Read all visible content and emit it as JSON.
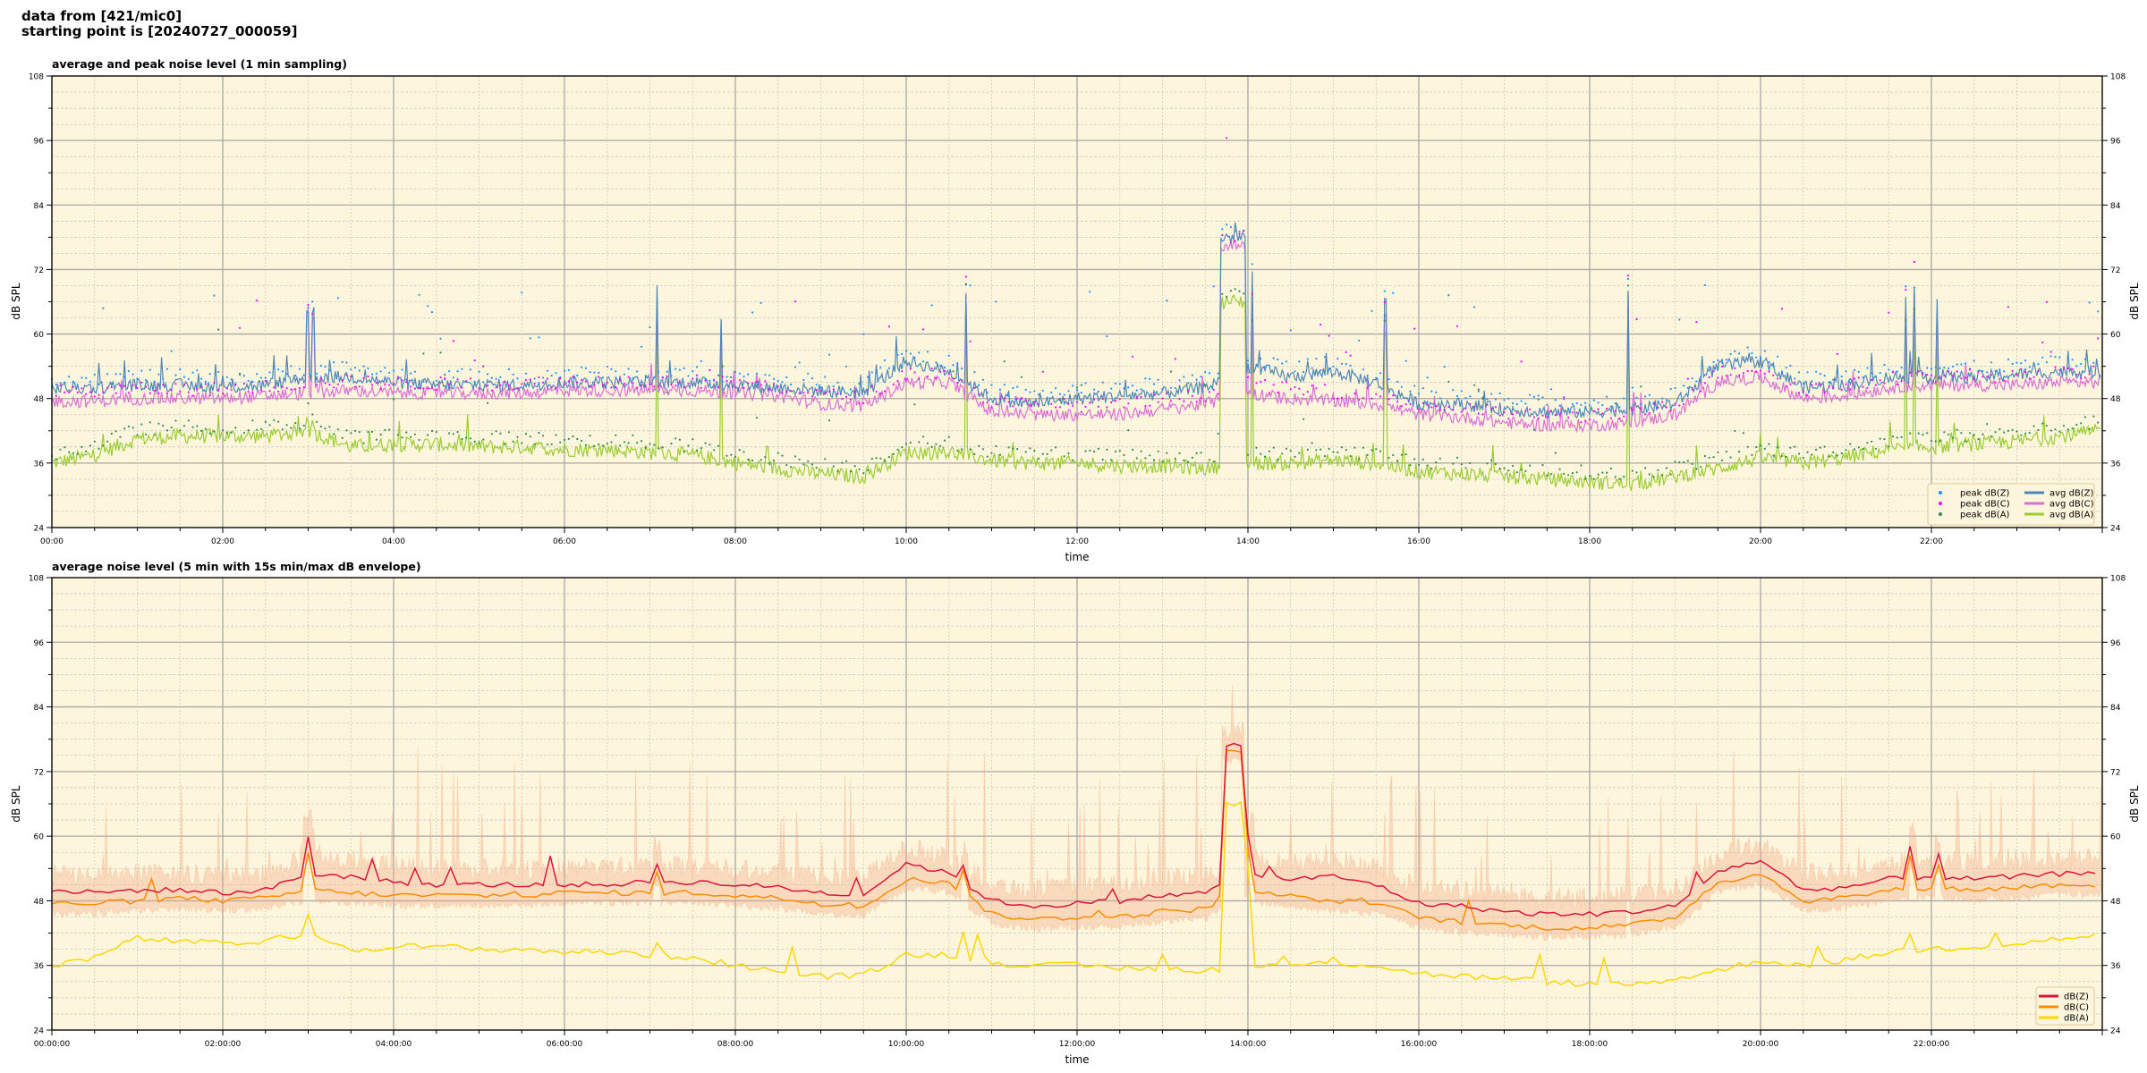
{
  "header": {
    "line1": "data from [421/mic0]",
    "line2": "starting point is [20240727_000059]"
  },
  "chart_data": [
    {
      "type": "line",
      "title": "average and peak noise level (1 min sampling)",
      "xlabel": "time",
      "ylabel": "dB SPL",
      "xlim_hours": [
        0,
        24
      ],
      "ylim": [
        24,
        108
      ],
      "yticks": [
        24,
        36,
        48,
        60,
        72,
        84,
        96,
        108
      ],
      "xtick_labels": [
        "00:00",
        "02:00",
        "04:00",
        "06:00",
        "08:00",
        "10:00",
        "12:00",
        "14:00",
        "16:00",
        "18:00",
        "20:00",
        "22:00"
      ],
      "grid": true,
      "background": "#fdf6dc",
      "legend": {
        "placement": "bottom-right",
        "columns": 2,
        "entries": [
          "peak dB(Z)",
          "peak dB(C)",
          "peak dB(A)",
          "avg dB(Z)",
          "avg dB(C)",
          "avg dB(A)"
        ]
      },
      "x_step_hours": 0.5,
      "series": [
        {
          "name": "avg dB(Z)",
          "color": "#4f86b8",
          "values": [
            50,
            50,
            50.5,
            50.5,
            50,
            50.5,
            52,
            52,
            51,
            50.5,
            50.5,
            50.5,
            51,
            51,
            51,
            51,
            50.5,
            50,
            49.5,
            49,
            55,
            53,
            48,
            47,
            48,
            48.5,
            49,
            50,
            54,
            52,
            53,
            51,
            47,
            47,
            46,
            45.5,
            45.5,
            46,
            47,
            54,
            55,
            50,
            50.5,
            52,
            52,
            52,
            52.5,
            53,
            53
          ]
        },
        {
          "name": "avg dB(C)",
          "color": "#da70d6",
          "values": [
            47.5,
            47.5,
            48,
            48,
            48,
            48.5,
            49,
            49.5,
            49,
            49,
            49,
            49,
            49.5,
            49.5,
            49.5,
            49.5,
            49,
            48.5,
            47,
            46.5,
            51,
            51,
            45.5,
            45,
            45,
            45,
            46,
            47,
            49,
            48,
            47.5,
            47,
            45,
            44.5,
            43.5,
            43,
            43,
            43.5,
            45,
            51,
            52,
            48,
            48.5,
            50,
            50.5,
            50.5,
            50.5,
            51,
            51
          ]
        },
        {
          "name": "avg dB(A)",
          "color": "#9acd32",
          "values": [
            36,
            37.5,
            40.5,
            41,
            41,
            41,
            42,
            39,
            39.5,
            39.5,
            39,
            39,
            38.5,
            38.5,
            38,
            37.5,
            36,
            35,
            34,
            33.5,
            38,
            38,
            36.5,
            36,
            36,
            35.5,
            35.5,
            35,
            36,
            36,
            36.5,
            36,
            34.5,
            34,
            33.5,
            33,
            32.5,
            32,
            33.5,
            35,
            37,
            36,
            37,
            38.5,
            39,
            39.5,
            40,
            41,
            42
          ]
        },
        {
          "name": "peak dB(Z)",
          "color": "#1e90ff"
        },
        {
          "name": "peak dB(C)",
          "color": "#ff00ff"
        },
        {
          "name": "peak dB(A)",
          "color": "#2e8b57"
        }
      ],
      "events": [
        {
          "start_h": 13.67,
          "end_h": 13.98,
          "z": 78,
          "c": 76.5,
          "a": 66
        },
        {
          "start_h": 2.97,
          "end_h": 3.0,
          "z": 64,
          "c": 64,
          "a": 45
        },
        {
          "start_h": 3.05,
          "end_h": 3.08,
          "z": 64,
          "c": 63,
          "a": 44
        },
        {
          "start_h": 7.07,
          "end_h": 7.09,
          "z": 68,
          "c": 66,
          "a": 66
        },
        {
          "start_h": 7.82,
          "end_h": 7.84,
          "z": 63,
          "c": 62,
          "a": 61
        },
        {
          "start_h": 10.69,
          "end_h": 10.71,
          "z": 68,
          "c": 68,
          "a": 67
        },
        {
          "start_h": 14.04,
          "end_h": 14.06,
          "z": 71,
          "c": 66,
          "a": 62
        },
        {
          "start_h": 15.6,
          "end_h": 15.62,
          "z": 66,
          "c": 64,
          "a": 60
        },
        {
          "start_h": 18.44,
          "end_h": 18.46,
          "z": 69,
          "c": 68,
          "a": 67
        },
        {
          "start_h": 21.69,
          "end_h": 21.71,
          "z": 68,
          "c": 67,
          "a": 62
        },
        {
          "start_h": 21.79,
          "end_h": 21.81,
          "z": 68,
          "c": 67,
          "a": 64
        },
        {
          "start_h": 22.06,
          "end_h": 22.08,
          "z": 66,
          "c": 64,
          "a": 58
        }
      ]
    },
    {
      "type": "line",
      "title": "average noise level (5 min with 15s min/max dB envelope)",
      "xlabel": "time",
      "ylabel": "dB SPL",
      "xlim_hours": [
        0,
        24
      ],
      "ylim": [
        24,
        108
      ],
      "yticks": [
        24,
        36,
        48,
        60,
        72,
        84,
        96,
        108
      ],
      "xtick_labels": [
        "00:00:00",
        "02:00:00",
        "04:00:00",
        "06:00:00",
        "08:00:00",
        "10:00:00",
        "12:00:00",
        "14:00:00",
        "16:00:00",
        "18:00:00",
        "20:00:00",
        "22:00:00"
      ],
      "grid": true,
      "background": "#fdf6dc",
      "legend": {
        "placement": "bottom-right",
        "columns": 1,
        "entries": [
          "dB(Z)",
          "dB(C)",
          "dB(A)"
        ]
      },
      "envelope_color": "#f4a582",
      "x_step_hours": 0.5,
      "series": [
        {
          "name": "dB(Z)",
          "color": "#dc143c",
          "values": [
            50,
            49.5,
            50,
            50,
            49.5,
            50,
            53,
            52.5,
            51.5,
            51,
            51,
            51,
            51,
            51,
            51.5,
            51.5,
            51,
            50.5,
            49.5,
            49,
            55,
            53,
            48,
            47,
            47.5,
            48,
            49,
            49.5,
            53,
            52,
            52.5,
            51,
            47.5,
            47,
            46,
            45.5,
            45.5,
            46,
            47,
            53.5,
            55.5,
            50,
            50.5,
            52,
            52.5,
            52,
            52.5,
            53,
            53
          ]
        },
        {
          "name": "dB(C)",
          "color": "#ff8c00",
          "values": [
            47.5,
            47.5,
            48,
            48.5,
            48,
            48.5,
            50,
            49.5,
            49,
            49,
            49,
            49,
            49.5,
            49.5,
            49.5,
            49.5,
            49,
            48.5,
            47.5,
            47,
            52,
            51.5,
            45.5,
            44.5,
            45,
            45,
            46,
            46.5,
            50,
            48.5,
            48,
            47.5,
            45,
            44,
            43.5,
            43,
            43,
            43.5,
            45,
            51.5,
            53,
            48,
            48.5,
            50,
            50.5,
            50,
            50.5,
            51,
            51
          ]
        },
        {
          "name": "dB(A)",
          "color": "#ffd700",
          "values": [
            36,
            37.5,
            41,
            40.5,
            40,
            40.5,
            42,
            39,
            39.5,
            39.5,
            39,
            39,
            38.5,
            38.5,
            38,
            37.5,
            36,
            35,
            34,
            34,
            38,
            38,
            36.5,
            36,
            36,
            35.5,
            35.5,
            35,
            36,
            36,
            36.5,
            36,
            34.5,
            34,
            33.5,
            33,
            32.5,
            32.5,
            33.5,
            35,
            37,
            36,
            37,
            38.5,
            39,
            39.5,
            40,
            41,
            41.5
          ]
        }
      ],
      "events": [
        {
          "start_h": 13.7,
          "end_h": 13.95,
          "z": 77,
          "c": 76,
          "a": 66
        },
        {
          "start_h": 2.95,
          "end_h": 3.08,
          "z": 60,
          "c": 57,
          "a": 45
        },
        {
          "start_h": 7.05,
          "end_h": 7.12,
          "z": 55,
          "c": 53,
          "a": 40
        },
        {
          "start_h": 10.65,
          "end_h": 10.72,
          "z": 55,
          "c": 54,
          "a": 42
        },
        {
          "start_h": 14.0,
          "end_h": 14.08,
          "z": 60,
          "c": 58,
          "a": 50
        },
        {
          "start_h": 18.42,
          "end_h": 18.48,
          "z": 51,
          "c": 50,
          "a": 37
        },
        {
          "start_h": 21.75,
          "end_h": 21.82,
          "z": 58,
          "c": 56,
          "a": 42
        },
        {
          "start_h": 22.05,
          "end_h": 22.1,
          "z": 57,
          "c": 55,
          "a": 40
        }
      ]
    }
  ]
}
